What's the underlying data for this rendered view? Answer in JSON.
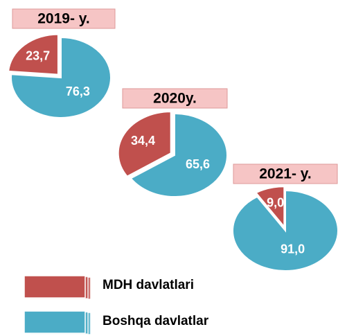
{
  "chart_data": [
    {
      "type": "pie",
      "title": "2019- y.",
      "categories": [
        "MDH davlatlari",
        "Boshqa davlatlar"
      ],
      "values": [
        23.7,
        76.3
      ],
      "value_labels": [
        "23,7",
        "76,3"
      ],
      "colors": [
        "#c0504d",
        "#4bacc6"
      ]
    },
    {
      "type": "pie",
      "title": "2020y.",
      "categories": [
        "MDH davlatlari",
        "Boshqa davlatlar"
      ],
      "values": [
        34.4,
        65.6
      ],
      "value_labels": [
        "34,4",
        "65,6"
      ],
      "colors": [
        "#c0504d",
        "#4bacc6"
      ]
    },
    {
      "type": "pie",
      "title": "2021- y.",
      "categories": [
        "MDH davlatlari",
        "Boshqa davlatlar"
      ],
      "values": [
        9.0,
        91.0
      ],
      "value_labels": [
        "9,0",
        "91,0"
      ],
      "colors": [
        "#c0504d",
        "#4bacc6"
      ]
    }
  ]
}
